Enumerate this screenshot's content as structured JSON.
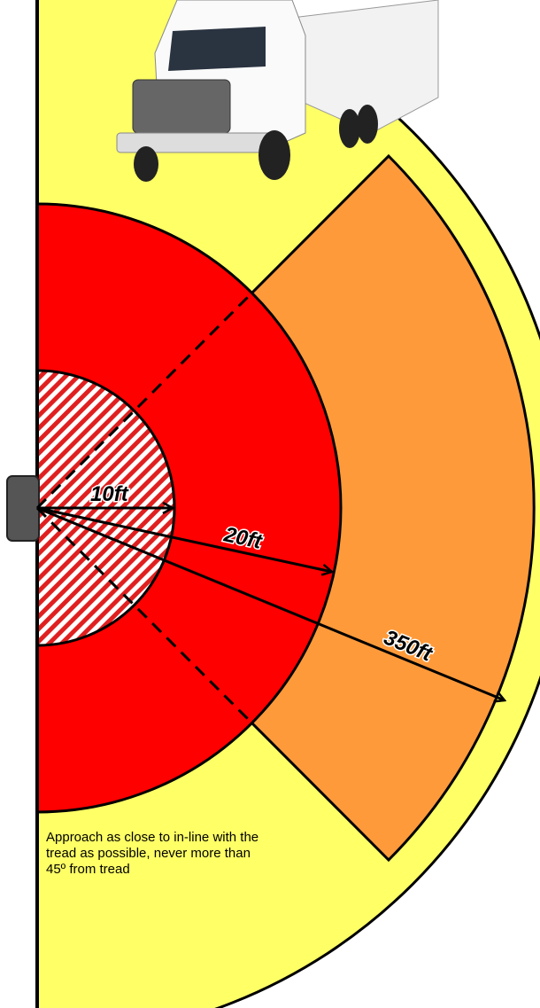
{
  "labels": {
    "inner": "10ft",
    "middle": "20ft",
    "outer": "350ft"
  },
  "note": [
    "Approach as close to in-line with the",
    "tread as possible, never more than",
    "45º from tread"
  ]
}
